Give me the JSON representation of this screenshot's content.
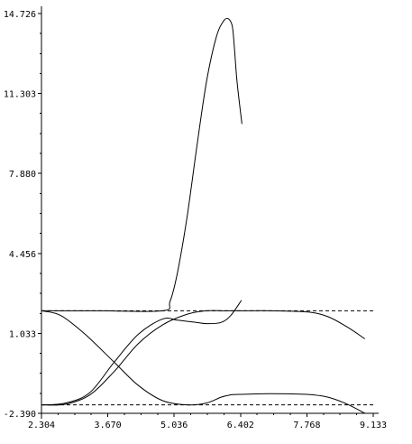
{
  "chart_data": {
    "type": "line",
    "title": "",
    "xlabel": "",
    "ylabel": "",
    "xlim": [
      2.304,
      9.133
    ],
    "ylim": [
      -2.39,
      14.726
    ],
    "x_tick_labels": [
      "2.304",
      "3.670",
      "5.036",
      "6.402",
      "7.768",
      "9.133"
    ],
    "x_ticks": [
      2.304,
      3.67,
      5.036,
      6.402,
      7.768,
      9.133
    ],
    "y_tick_labels": [
      "-2.390",
      "1.033",
      "4.456",
      "7.880",
      "11.303",
      "14.726"
    ],
    "y_ticks": [
      -2.39,
      1.033,
      4.456,
      7.88,
      11.303,
      14.726
    ],
    "grid": false,
    "legend": "none",
    "reference_lines": [
      {
        "y": 2.0,
        "style": "dashed",
        "x_range": [
          2.304,
          9.133
        ]
      },
      {
        "y": -2.03,
        "style": "dashed",
        "x_range": [
          2.304,
          9.133
        ]
      }
    ],
    "series": [
      {
        "color": "#000000",
        "x": [
          2.304,
          3.5,
          4.8,
          4.95,
          5.1,
          5.3,
          5.5,
          5.7,
          5.9,
          6.05,
          6.15,
          6.23,
          6.27,
          6.33,
          6.43
        ],
        "y": [
          2.0,
          2.0,
          2.0,
          2.4,
          3.6,
          6.0,
          9.0,
          11.8,
          13.7,
          14.4,
          14.5,
          14.2,
          13.4,
          11.8,
          10.0
        ]
      },
      {
        "color": "#000000",
        "x": [
          2.304,
          2.7,
          3.2,
          3.8,
          4.3,
          4.8,
          5.3,
          5.7,
          6.0,
          6.2,
          6.4,
          7.0,
          7.768,
          8.2,
          8.6,
          8.96
        ],
        "y": [
          2.0,
          1.8,
          1.0,
          -0.2,
          -1.2,
          -1.85,
          -2.03,
          -1.95,
          -1.7,
          -1.6,
          -1.58,
          -1.55,
          -1.58,
          -1.7,
          -2.0,
          -2.39
        ]
      },
      {
        "color": "#000000",
        "x": [
          2.304,
          2.8,
          3.3,
          3.8,
          4.3,
          4.8,
          5.3,
          5.7,
          6.1,
          6.5,
          7.0,
          7.768,
          8.2,
          8.6,
          8.96
        ],
        "y": [
          -2.03,
          -2.0,
          -1.6,
          -0.6,
          0.6,
          1.4,
          1.85,
          2.0,
          2.0,
          2.0,
          2.0,
          1.95,
          1.75,
          1.3,
          0.8
        ]
      },
      {
        "color": "#000000",
        "x": [
          2.304,
          2.8,
          3.3,
          3.8,
          4.3,
          4.8,
          5.1,
          5.5,
          5.7,
          6.0,
          6.2,
          6.42
        ],
        "y": [
          -2.03,
          -1.95,
          -1.5,
          -0.2,
          1.0,
          1.65,
          1.6,
          1.5,
          1.45,
          1.5,
          1.8,
          2.45
        ]
      }
    ]
  }
}
